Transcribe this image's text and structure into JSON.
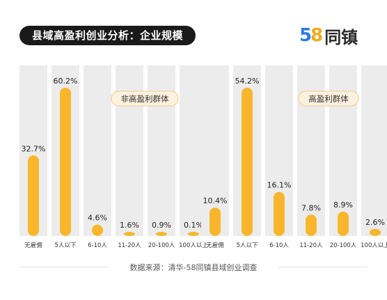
{
  "header": {
    "title": "县域高盈利创业分析：企业规模"
  },
  "logo": {
    "digits": [
      "5",
      "8"
    ],
    "text": "同镇",
    "colors": {
      "digit5": "#2a7de1",
      "digit8": "#f2a81d"
    }
  },
  "footer": {
    "source": "数据来源：清华-58同镇县域创业调查"
  },
  "colors": {
    "bar": "#f9b62c",
    "column_bg": "#ececec",
    "badge_bg": "#fdf2df",
    "badge_border": "#f3c984"
  },
  "chart_data": [
    {
      "type": "bar",
      "title": "非高盈利群体",
      "categories": [
        "无雇佣",
        "5人以下",
        "6-10人",
        "11-20人",
        "20-100人",
        "100人以上"
      ],
      "values": [
        32.7,
        60.2,
        4.6,
        1.6,
        0.9,
        0.1
      ],
      "value_labels": [
        "32.7%",
        "60.2%",
        "4.6%",
        "1.6%",
        "0.9%",
        "0.1%"
      ],
      "unit": "%",
      "ylim": [
        0,
        60.2
      ],
      "grid": false,
      "legend_position": "top-right"
    },
    {
      "type": "bar",
      "title": "高盈利群体",
      "categories": [
        "无雇佣",
        "5人以下",
        "6-10人",
        "11-20人",
        "20-100人",
        "100人以上"
      ],
      "values": [
        10.4,
        54.2,
        16.1,
        7.8,
        8.9,
        2.6
      ],
      "value_labels": [
        "10.4%",
        "54.2%",
        "16.1%",
        "7.8%",
        "8.9%",
        "2.6%"
      ],
      "unit": "%",
      "ylim": [
        0,
        54.2
      ],
      "grid": false,
      "legend_position": "top-right"
    }
  ]
}
